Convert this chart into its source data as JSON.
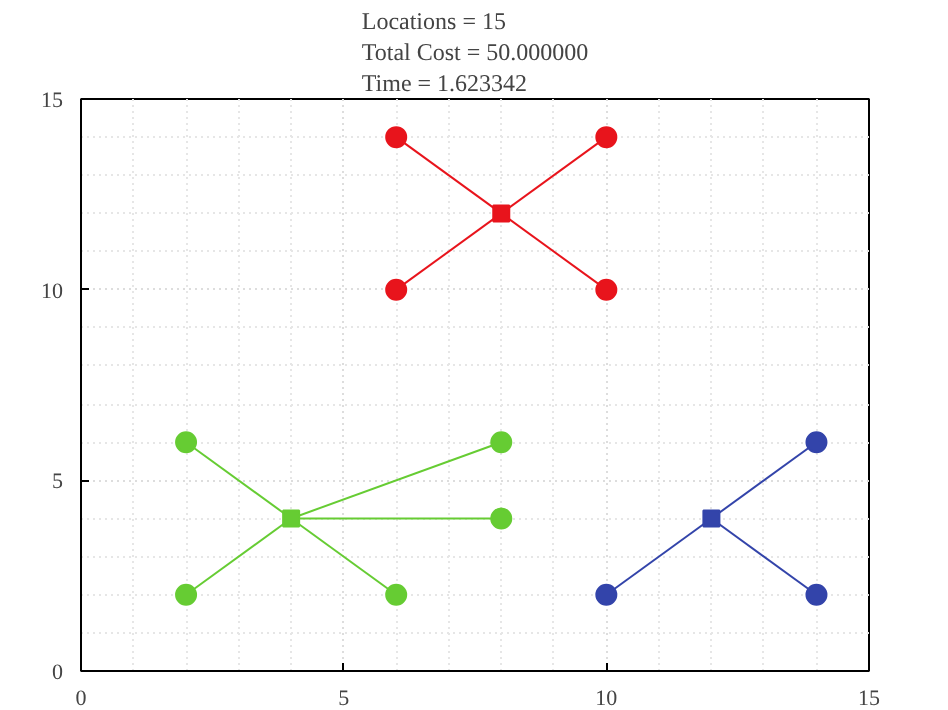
{
  "chart_data": {
    "type": "scatter",
    "title": "Locations = 15\nTotal Cost = 50.000000\nTime = 1.623342",
    "xlim": [
      0,
      15
    ],
    "ylim": [
      0,
      15
    ],
    "xticks": [
      0,
      5,
      10,
      15
    ],
    "yticks": [
      0,
      5,
      10,
      15
    ],
    "grid": true,
    "marker": "circle",
    "series": [
      {
        "color": "#e8141c",
        "marker": "square",
        "x": [
          8
        ],
        "values": [
          12
        ]
      },
      {
        "color": "#66cc33",
        "marker": "square",
        "x": [
          4
        ],
        "values": [
          4
        ]
      },
      {
        "color": "#3344aa",
        "marker": "square",
        "x": [
          12
        ],
        "values": [
          4
        ]
      },
      {
        "color": "#e8141c",
        "x": [
          6,
          10,
          6,
          10
        ],
        "values": [
          14,
          14,
          10,
          10
        ]
      },
      {
        "color": "#66cc33",
        "x": [
          2,
          8,
          8,
          2,
          6
        ],
        "values": [
          6,
          6,
          4,
          2,
          2
        ]
      },
      {
        "color": "#3344aa",
        "x": [
          14,
          10,
          14
        ],
        "values": [
          6,
          2,
          2
        ]
      },
      {
        "type": "line",
        "marker": "none",
        "color": "#e8141c",
        "x": [
          8,
          6
        ],
        "values": [
          12,
          14
        ]
      },
      {
        "type": "line",
        "marker": "none",
        "color": "#e8141c",
        "x": [
          8,
          10
        ],
        "values": [
          12,
          14
        ]
      },
      {
        "type": "line",
        "marker": "none",
        "color": "#e8141c",
        "x": [
          8,
          6
        ],
        "values": [
          12,
          10
        ]
      },
      {
        "type": "line",
        "marker": "none",
        "color": "#e8141c",
        "x": [
          8,
          10
        ],
        "values": [
          12,
          10
        ]
      },
      {
        "type": "line",
        "marker": "none",
        "color": "#66cc33",
        "x": [
          4,
          2
        ],
        "values": [
          4,
          6
        ]
      },
      {
        "type": "line",
        "marker": "none",
        "color": "#66cc33",
        "x": [
          4,
          8
        ],
        "values": [
          4,
          6
        ]
      },
      {
        "type": "line",
        "marker": "none",
        "color": "#66cc33",
        "x": [
          4,
          8
        ],
        "values": [
          4,
          4
        ]
      },
      {
        "type": "line",
        "marker": "none",
        "color": "#66cc33",
        "x": [
          4,
          2
        ],
        "values": [
          4,
          2
        ]
      },
      {
        "type": "line",
        "marker": "none",
        "color": "#66cc33",
        "x": [
          4,
          6
        ],
        "values": [
          4,
          2
        ]
      },
      {
        "type": "line",
        "marker": "none",
        "color": "#3344aa",
        "x": [
          12,
          14
        ],
        "values": [
          4,
          6
        ]
      },
      {
        "type": "line",
        "marker": "none",
        "color": "#3344aa",
        "x": [
          12,
          10
        ],
        "values": [
          4,
          2
        ]
      },
      {
        "type": "line",
        "marker": "none",
        "color": "#3344aa",
        "x": [
          12,
          14
        ],
        "values": [
          4,
          2
        ]
      }
    ]
  }
}
